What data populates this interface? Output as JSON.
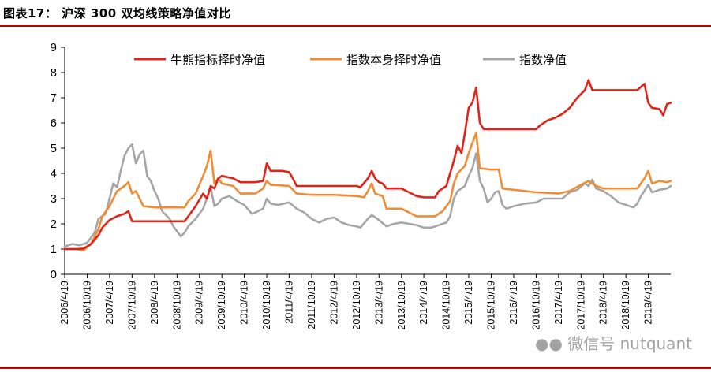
{
  "figure": {
    "title": "图表17： 沪深 300 双均线策略净值对比",
    "watermark": "微信号 nutquant"
  },
  "colors": {
    "rule": "#c00000",
    "bull_bear": "#e2231a",
    "index_timing": "#f08c35",
    "index": "#a6a6a6"
  },
  "chart_data": {
    "type": "line",
    "title": "",
    "xlabel": "",
    "ylabel": "",
    "ylim": [
      0,
      9
    ],
    "yticks": [
      0,
      1,
      2,
      3,
      4,
      5,
      6,
      7,
      8,
      9
    ],
    "xlim": [
      "2006/4/19",
      "2019/10/19"
    ],
    "xticks": [
      "2006/4/19",
      "2006/10/19",
      "2007/4/19",
      "2007/10/19",
      "2008/4/19",
      "2008/10/19",
      "2009/4/19",
      "2009/10/19",
      "2010/4/19",
      "2010/10/19",
      "2011/4/19",
      "2011/10/19",
      "2012/4/19",
      "2012/10/19",
      "2013/4/19",
      "2013/10/19",
      "2014/4/19",
      "2014/10/19",
      "2015/4/19",
      "2015/10/19",
      "2016/4/19",
      "2016/10/19",
      "2017/4/19",
      "2017/10/19",
      "2018/4/19",
      "2018/10/19",
      "2019/4/19"
    ],
    "grid": false,
    "legend": "top",
    "series": [
      {
        "name": "牛熊指标择时净值",
        "color_key": "bull_bear",
        "points": [
          [
            "2006/4/19",
            1.0
          ],
          [
            "2006/7/19",
            1.0
          ],
          [
            "2006/9/19",
            1.02
          ],
          [
            "2006/11/19",
            1.2
          ],
          [
            "2007/1/19",
            1.55
          ],
          [
            "2007/2/19",
            1.85
          ],
          [
            "2007/4/19",
            2.15
          ],
          [
            "2007/6/19",
            2.3
          ],
          [
            "2007/8/19",
            2.4
          ],
          [
            "2007/9/19",
            2.5
          ],
          [
            "2007/10/19",
            2.1
          ],
          [
            "2008/4/19",
            2.1
          ],
          [
            "2008/10/19",
            2.1
          ],
          [
            "2008/12/19",
            2.1
          ],
          [
            "2009/1/19",
            2.3
          ],
          [
            "2009/3/19",
            2.7
          ],
          [
            "2009/5/19",
            3.2
          ],
          [
            "2009/6/19",
            3.0
          ],
          [
            "2009/7/19",
            3.5
          ],
          [
            "2009/8/19",
            3.4
          ],
          [
            "2009/9/19",
            3.8
          ],
          [
            "2009/10/19",
            3.9
          ],
          [
            "2010/1/19",
            3.8
          ],
          [
            "2010/3/19",
            3.65
          ],
          [
            "2010/7/19",
            3.65
          ],
          [
            "2010/9/19",
            3.7
          ],
          [
            "2010/10/19",
            4.4
          ],
          [
            "2010/11/19",
            4.1
          ],
          [
            "2011/2/19",
            4.1
          ],
          [
            "2011/4/19",
            4.05
          ],
          [
            "2011/5/19",
            3.8
          ],
          [
            "2011/6/19",
            3.5
          ],
          [
            "2011/10/19",
            3.5
          ],
          [
            "2012/4/19",
            3.5
          ],
          [
            "2012/10/19",
            3.5
          ],
          [
            "2012/11/19",
            3.45
          ],
          [
            "2013/1/19",
            3.8
          ],
          [
            "2013/2/19",
            4.1
          ],
          [
            "2013/3/19",
            3.8
          ],
          [
            "2013/4/19",
            3.65
          ],
          [
            "2013/5/19",
            3.6
          ],
          [
            "2013/6/19",
            3.4
          ],
          [
            "2013/10/19",
            3.4
          ],
          [
            "2013/12/19",
            3.25
          ],
          [
            "2014/2/19",
            3.1
          ],
          [
            "2014/4/19",
            3.05
          ],
          [
            "2014/7/19",
            3.05
          ],
          [
            "2014/8/19",
            3.3
          ],
          [
            "2014/10/19",
            3.5
          ],
          [
            "2014/12/19",
            4.5
          ],
          [
            "2015/1/19",
            5.1
          ],
          [
            "2015/2/19",
            4.8
          ],
          [
            "2015/3/19",
            5.6
          ],
          [
            "2015/4/19",
            6.6
          ],
          [
            "2015/5/19",
            6.8
          ],
          [
            "2015/6/19",
            7.4
          ],
          [
            "2015/7/19",
            6.0
          ],
          [
            "2015/8/19",
            5.75
          ],
          [
            "2015/10/19",
            5.75
          ],
          [
            "2016/4/19",
            5.75
          ],
          [
            "2016/10/19",
            5.75
          ],
          [
            "2016/11/19",
            5.9
          ],
          [
            "2017/1/19",
            6.1
          ],
          [
            "2017/3/19",
            6.2
          ],
          [
            "2017/5/19",
            6.35
          ],
          [
            "2017/7/19",
            6.6
          ],
          [
            "2017/9/19",
            7.0
          ],
          [
            "2017/11/19",
            7.3
          ],
          [
            "2017/12/19",
            7.7
          ],
          [
            "2018/1/19",
            7.3
          ],
          [
            "2018/4/19",
            7.3
          ],
          [
            "2018/10/19",
            7.3
          ],
          [
            "2019/1/19",
            7.3
          ],
          [
            "2019/3/19",
            7.55
          ],
          [
            "2019/4/19",
            6.8
          ],
          [
            "2019/5/19",
            6.6
          ],
          [
            "2019/7/19",
            6.55
          ],
          [
            "2019/8/19",
            6.3
          ],
          [
            "2019/9/19",
            6.75
          ],
          [
            "2019/10/19",
            6.8
          ]
        ]
      },
      {
        "name": "指数本身择时净值",
        "color_key": "index_timing",
        "points": [
          [
            "2006/4/19",
            1.0
          ],
          [
            "2006/7/19",
            1.0
          ],
          [
            "2006/9/19",
            0.95
          ],
          [
            "2006/11/19",
            1.2
          ],
          [
            "2007/1/19",
            1.8
          ],
          [
            "2007/2/19",
            2.3
          ],
          [
            "2007/4/19",
            2.7
          ],
          [
            "2007/6/19",
            3.3
          ],
          [
            "2007/8/19",
            3.5
          ],
          [
            "2007/9/19",
            3.65
          ],
          [
            "2007/10/19",
            3.2
          ],
          [
            "2007/11/19",
            3.3
          ],
          [
            "2008/1/19",
            2.7
          ],
          [
            "2008/4/19",
            2.65
          ],
          [
            "2008/10/19",
            2.65
          ],
          [
            "2008/12/19",
            2.65
          ],
          [
            "2009/1/19",
            2.9
          ],
          [
            "2009/3/19",
            3.2
          ],
          [
            "2009/5/19",
            3.9
          ],
          [
            "2009/6/19",
            4.3
          ],
          [
            "2009/7/19",
            4.9
          ],
          [
            "2009/8/19",
            3.6
          ],
          [
            "2009/9/19",
            3.8
          ],
          [
            "2009/10/19",
            3.6
          ],
          [
            "2010/1/19",
            3.5
          ],
          [
            "2010/3/19",
            3.2
          ],
          [
            "2010/7/19",
            3.2
          ],
          [
            "2010/9/19",
            3.4
          ],
          [
            "2010/10/19",
            3.7
          ],
          [
            "2010/11/19",
            3.55
          ],
          [
            "2011/4/19",
            3.5
          ],
          [
            "2011/6/19",
            3.2
          ],
          [
            "2011/10/19",
            3.15
          ],
          [
            "2012/4/19",
            3.15
          ],
          [
            "2012/10/19",
            3.1
          ],
          [
            "2012/12/19",
            3.05
          ],
          [
            "2013/1/19",
            3.3
          ],
          [
            "2013/2/19",
            3.6
          ],
          [
            "2013/3/19",
            3.2
          ],
          [
            "2013/5/19",
            3.1
          ],
          [
            "2013/6/19",
            2.6
          ],
          [
            "2013/10/19",
            2.6
          ],
          [
            "2013/12/19",
            2.45
          ],
          [
            "2014/2/19",
            2.3
          ],
          [
            "2014/4/19",
            2.3
          ],
          [
            "2014/7/19",
            2.3
          ],
          [
            "2014/9/19",
            2.5
          ],
          [
            "2014/11/19",
            2.9
          ],
          [
            "2014/12/19",
            3.6
          ],
          [
            "2015/1/19",
            4.0
          ],
          [
            "2015/3/19",
            4.3
          ],
          [
            "2015/4/19",
            4.8
          ],
          [
            "2015/5/19",
            5.2
          ],
          [
            "2015/6/19",
            5.6
          ],
          [
            "2015/7/19",
            4.2
          ],
          [
            "2015/10/19",
            4.15
          ],
          [
            "2015/12/19",
            4.15
          ],
          [
            "2016/1/19",
            3.4
          ],
          [
            "2016/4/19",
            3.35
          ],
          [
            "2016/10/19",
            3.25
          ],
          [
            "2017/4/19",
            3.2
          ],
          [
            "2017/7/19",
            3.3
          ],
          [
            "2017/10/19",
            3.55
          ],
          [
            "2017/12/19",
            3.7
          ],
          [
            "2018/2/19",
            3.5
          ],
          [
            "2018/4/19",
            3.4
          ],
          [
            "2018/10/19",
            3.4
          ],
          [
            "2019/1/19",
            3.4
          ],
          [
            "2019/3/19",
            3.8
          ],
          [
            "2019/4/19",
            4.1
          ],
          [
            "2019/5/19",
            3.6
          ],
          [
            "2019/7/19",
            3.7
          ],
          [
            "2019/9/19",
            3.65
          ],
          [
            "2019/10/19",
            3.7
          ]
        ]
      },
      {
        "name": "指数净值",
        "color_key": "index",
        "points": [
          [
            "2006/4/19",
            1.1
          ],
          [
            "2006/6/19",
            1.2
          ],
          [
            "2006/8/19",
            1.15
          ],
          [
            "2006/10/19",
            1.25
          ],
          [
            "2006/12/19",
            1.65
          ],
          [
            "2007/1/19",
            2.2
          ],
          [
            "2007/3/19",
            2.4
          ],
          [
            "2007/4/19",
            3.0
          ],
          [
            "2007/5/19",
            3.6
          ],
          [
            "2007/6/19",
            3.45
          ],
          [
            "2007/7/19",
            4.1
          ],
          [
            "2007/8/19",
            4.7
          ],
          [
            "2007/9/19",
            5.0
          ],
          [
            "2007/10/19",
            5.15
          ],
          [
            "2007/11/19",
            4.4
          ],
          [
            "2007/12/19",
            4.75
          ],
          [
            "2008/1/19",
            4.9
          ],
          [
            "2008/2/19",
            3.9
          ],
          [
            "2008/3/19",
            3.7
          ],
          [
            "2008/4/19",
            3.3
          ],
          [
            "2008/5/19",
            3.0
          ],
          [
            "2008/6/19",
            2.5
          ],
          [
            "2008/8/19",
            2.2
          ],
          [
            "2008/9/19",
            1.9
          ],
          [
            "2008/10/19",
            1.7
          ],
          [
            "2008/11/19",
            1.5
          ],
          [
            "2008/12/19",
            1.65
          ],
          [
            "2009/1/19",
            1.9
          ],
          [
            "2009/3/19",
            2.2
          ],
          [
            "2009/5/19",
            2.6
          ],
          [
            "2009/6/19",
            3.0
          ],
          [
            "2009/7/19",
            3.45
          ],
          [
            "2009/8/19",
            2.7
          ],
          [
            "2009/9/19",
            2.8
          ],
          [
            "2009/10/19",
            3.0
          ],
          [
            "2009/12/19",
            3.1
          ],
          [
            "2010/2/19",
            2.9
          ],
          [
            "2010/4/19",
            2.75
          ],
          [
            "2010/6/19",
            2.4
          ],
          [
            "2010/7/19",
            2.45
          ],
          [
            "2010/9/19",
            2.6
          ],
          [
            "2010/10/19",
            3.0
          ],
          [
            "2010/11/19",
            2.8
          ],
          [
            "2011/1/19",
            2.75
          ],
          [
            "2011/4/19",
            2.85
          ],
          [
            "2011/6/19",
            2.6
          ],
          [
            "2011/8/19",
            2.45
          ],
          [
            "2011/10/19",
            2.2
          ],
          [
            "2011/12/19",
            2.05
          ],
          [
            "2012/2/19",
            2.2
          ],
          [
            "2012/4/19",
            2.25
          ],
          [
            "2012/6/19",
            2.05
          ],
          [
            "2012/8/19",
            1.95
          ],
          [
            "2012/10/19",
            1.9
          ],
          [
            "2012/11/19",
            1.85
          ],
          [
            "2013/1/19",
            2.2
          ],
          [
            "2013/2/19",
            2.35
          ],
          [
            "2013/4/19",
            2.15
          ],
          [
            "2013/6/19",
            1.9
          ],
          [
            "2013/8/19",
            2.0
          ],
          [
            "2013/10/19",
            2.05
          ],
          [
            "2013/12/19",
            2.0
          ],
          [
            "2014/2/19",
            1.95
          ],
          [
            "2014/4/19",
            1.85
          ],
          [
            "2014/6/19",
            1.85
          ],
          [
            "2014/8/19",
            1.95
          ],
          [
            "2014/10/19",
            2.05
          ],
          [
            "2014/11/19",
            2.3
          ],
          [
            "2014/12/19",
            3.0
          ],
          [
            "2015/1/19",
            3.3
          ],
          [
            "2015/3/19",
            3.5
          ],
          [
            "2015/4/19",
            3.9
          ],
          [
            "2015/5/19",
            4.2
          ],
          [
            "2015/6/19",
            4.8
          ],
          [
            "2015/7/19",
            3.7
          ],
          [
            "2015/8/19",
            3.4
          ],
          [
            "2015/9/19",
            2.85
          ],
          [
            "2015/10/19",
            3.0
          ],
          [
            "2015/11/19",
            3.25
          ],
          [
            "2015/12/19",
            3.3
          ],
          [
            "2016/1/19",
            2.75
          ],
          [
            "2016/2/19",
            2.6
          ],
          [
            "2016/4/19",
            2.7
          ],
          [
            "2016/7/19",
            2.8
          ],
          [
            "2016/10/19",
            2.85
          ],
          [
            "2016/12/19",
            3.0
          ],
          [
            "2017/3/19",
            3.0
          ],
          [
            "2017/5/19",
            3.0
          ],
          [
            "2017/7/19",
            3.25
          ],
          [
            "2017/9/19",
            3.35
          ],
          [
            "2017/11/19",
            3.6
          ],
          [
            "2017/12/19",
            3.5
          ],
          [
            "2018/1/19",
            3.75
          ],
          [
            "2018/2/19",
            3.4
          ],
          [
            "2018/4/19",
            3.3
          ],
          [
            "2018/6/19",
            3.1
          ],
          [
            "2018/8/19",
            2.85
          ],
          [
            "2018/10/19",
            2.75
          ],
          [
            "2018/12/19",
            2.65
          ],
          [
            "2019/1/19",
            2.8
          ],
          [
            "2019/2/19",
            3.1
          ],
          [
            "2019/4/19",
            3.55
          ],
          [
            "2019/5/19",
            3.25
          ],
          [
            "2019/7/19",
            3.35
          ],
          [
            "2019/9/19",
            3.4
          ],
          [
            "2019/10/19",
            3.5
          ]
        ]
      }
    ]
  }
}
